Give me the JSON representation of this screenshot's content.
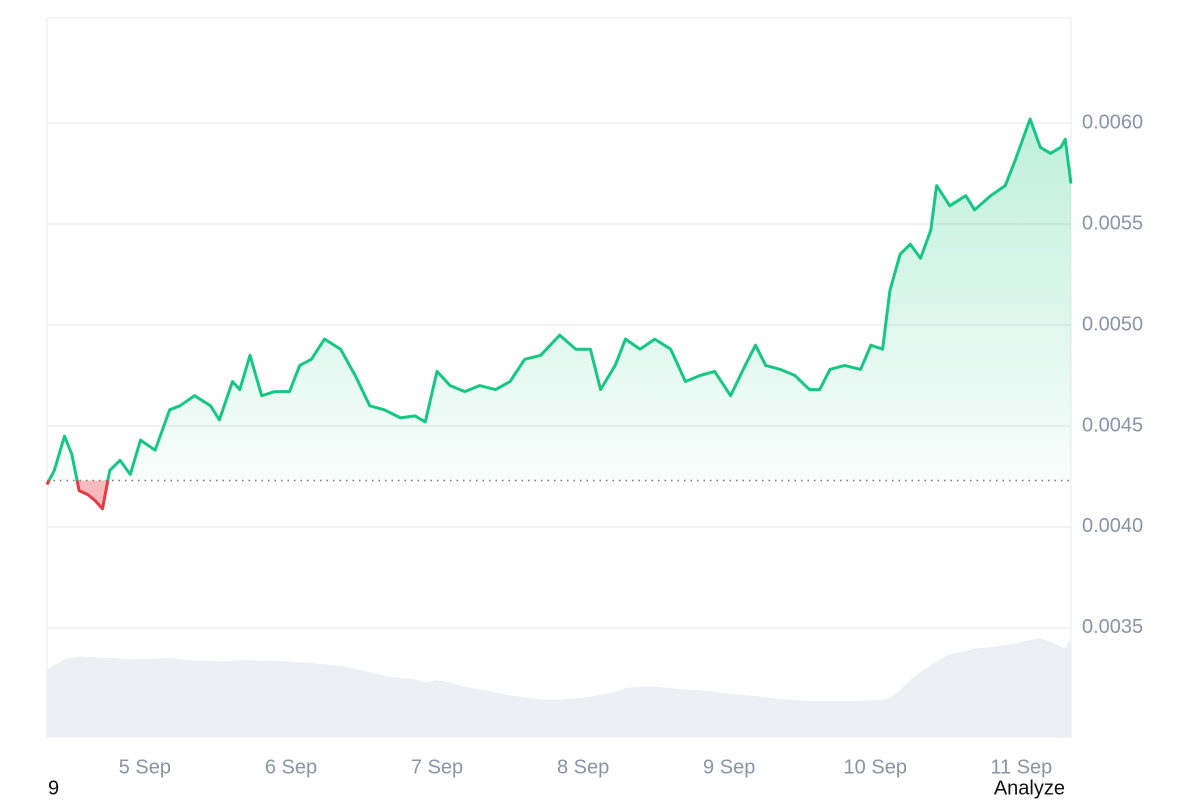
{
  "chart_data": {
    "type": "line",
    "x": [
      4.33,
      4.38,
      4.45,
      4.5,
      4.55,
      4.61,
      4.66,
      4.71,
      4.76,
      4.83,
      4.9,
      4.97,
      5.07,
      5.17,
      5.24,
      5.34,
      5.45,
      5.51,
      5.6,
      5.65,
      5.72,
      5.8,
      5.89,
      5.99,
      6.06,
      6.14,
      6.23,
      6.34,
      6.44,
      6.54,
      6.64,
      6.75,
      6.85,
      6.92,
      7.0,
      7.09,
      7.19,
      7.29,
      7.4,
      7.5,
      7.6,
      7.71,
      7.84,
      7.95,
      8.05,
      8.12,
      8.22,
      8.29,
      8.39,
      8.49,
      8.6,
      8.7,
      8.8,
      8.9,
      9.01,
      9.11,
      9.18,
      9.25,
      9.35,
      9.45,
      9.55,
      9.62,
      9.69,
      9.79,
      9.9,
      9.97,
      10.05,
      10.1,
      10.17,
      10.24,
      10.31,
      10.38,
      10.42,
      10.51,
      10.62,
      10.68,
      10.79,
      10.89,
      10.96,
      11.06,
      11.13,
      11.2,
      11.27,
      11.3,
      11.34
    ],
    "series": [
      {
        "color": "#16c784",
        "color_below": "#ea3943",
        "values": [
          0.00421,
          0.00428,
          0.00445,
          0.00436,
          0.00418,
          0.00416,
          0.00413,
          0.00409,
          0.00428,
          0.00433,
          0.00426,
          0.00443,
          0.00438,
          0.00458,
          0.0046,
          0.00465,
          0.0046,
          0.00453,
          0.00472,
          0.00468,
          0.00485,
          0.00465,
          0.00467,
          0.00467,
          0.0048,
          0.00483,
          0.00493,
          0.00488,
          0.00475,
          0.0046,
          0.00458,
          0.00454,
          0.00455,
          0.00452,
          0.00477,
          0.0047,
          0.00467,
          0.0047,
          0.00468,
          0.00472,
          0.00483,
          0.00485,
          0.00495,
          0.00488,
          0.00488,
          0.00468,
          0.0048,
          0.00493,
          0.00488,
          0.00493,
          0.00488,
          0.00472,
          0.00475,
          0.00477,
          0.00465,
          0.0048,
          0.0049,
          0.0048,
          0.00478,
          0.00475,
          0.00468,
          0.00468,
          0.00478,
          0.0048,
          0.00478,
          0.0049,
          0.00488,
          0.00517,
          0.00535,
          0.0054,
          0.00533,
          0.00547,
          0.00569,
          0.00559,
          0.00564,
          0.00557,
          0.00564,
          0.00569,
          0.00582,
          0.00602,
          0.00588,
          0.00585,
          0.00588,
          0.00592,
          0.0057
        ]
      },
      {
        "axis": "y2",
        "color": "#eceff3",
        "values": [
          9.3,
          10,
          10.8,
          11,
          11.2,
          11.1,
          11.1,
          11.0,
          11.0,
          10.9,
          10.8,
          10.8,
          10.9,
          11.0,
          10.8,
          10.6,
          10.6,
          10.5,
          10.6,
          10.7,
          10.7,
          10.6,
          10.6,
          10.5,
          10.4,
          10.3,
          10.1,
          9.9,
          9.5,
          9.0,
          8.5,
          8.2,
          8.0,
          7.6,
          7.9,
          7.6,
          7.0,
          6.6,
          6.2,
          5.8,
          5.5,
          5.2,
          5.2,
          5.4,
          5.6,
          5.9,
          6.3,
          6.8,
          7.0,
          7.0,
          6.8,
          6.6,
          6.5,
          6.3,
          6.0,
          5.8,
          5.7,
          5.5,
          5.3,
          5.1,
          5.0,
          5.0,
          5.0,
          5.0,
          5.0,
          5.1,
          5.2,
          5.5,
          6.5,
          8.0,
          9.0,
          10.0,
          10.5,
          11.5,
          12.0,
          12.3,
          12.5,
          12.8,
          13.0,
          13.5,
          13.7,
          13.2,
          12.6,
          12.3,
          14.0
        ]
      }
    ],
    "baseline": 0.00423,
    "xlim": [
      4.33,
      11.34
    ],
    "xticks": [
      {
        "value": 5,
        "label": "5 Sep"
      },
      {
        "value": 6,
        "label": "6 Sep"
      },
      {
        "value": 7,
        "label": "7 Sep"
      },
      {
        "value": 8,
        "label": "8 Sep"
      },
      {
        "value": 9,
        "label": "9 Sep"
      },
      {
        "value": 10,
        "label": "10 Sep"
      },
      {
        "value": 11,
        "label": "11 Sep"
      }
    ],
    "ylim": [
      0.00296,
      0.00652
    ],
    "yticks": [
      0.0035,
      {
        "value": 0.004,
        "label": "0.0040"
      },
      0.0045,
      {
        "value": 0.005,
        "label": "0.0050"
      },
      0.0055,
      {
        "value": 0.006,
        "label": "0.0060"
      }
    ],
    "y2lim": [
      0,
      100
    ],
    "grid": true
  },
  "footer": {
    "left": "9",
    "right": "Analyze"
  }
}
